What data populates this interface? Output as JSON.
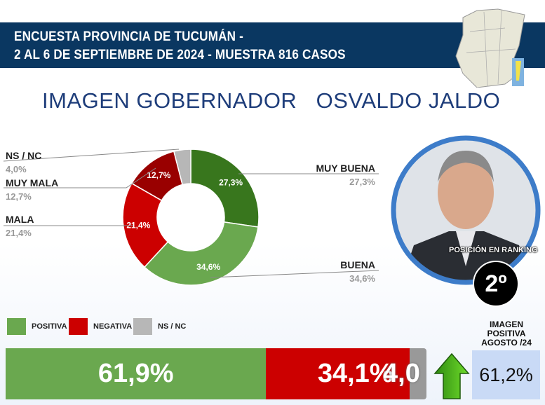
{
  "header": {
    "line1": "ENCUESTA PROVINCIA DE TUCUMÁN -",
    "line2": "2 AL 6 DE SEPTIEMBRE DE 2024 - MUESTRA 816 CASOS"
  },
  "title": "IMAGEN GOBERNADOR   OSVALDO JALDO",
  "chart_data": {
    "type": "pie",
    "title": "IMAGEN GOBERNADOR OSVALDO JALDO",
    "slices": [
      {
        "label": "MUY BUENA",
        "value": 27.3,
        "text": "27,3%",
        "color": "#38761d"
      },
      {
        "label": "BUENA",
        "value": 34.6,
        "text": "34,6%",
        "color": "#6aa84f"
      },
      {
        "label": "MALA",
        "value": 21.4,
        "text": "21,4%",
        "color": "#cc0000"
      },
      {
        "label": "MUY MALA",
        "value": 12.7,
        "text": "12,7%",
        "color": "#990000"
      },
      {
        "label": "NS / NC",
        "value": 4.0,
        "text": "4,0%",
        "color": "#b7b7b7"
      }
    ]
  },
  "legend": [
    {
      "label": "POSITIVA",
      "color": "#6aa84f"
    },
    {
      "label": "NEGATIVA",
      "color": "#cc0000"
    },
    {
      "label": "NS / NC",
      "color": "#b7b7b7"
    }
  ],
  "summary": [
    {
      "label": "POSITIVA",
      "value": 61.9,
      "text": "61,9%"
    },
    {
      "label": "NEGATIVA",
      "value": 34.1,
      "text": "34,1%"
    },
    {
      "label": "NS / NC",
      "value": 4.0,
      "text": "4,0"
    }
  ],
  "ranking": {
    "label": "POSICIÓN EN RANKING",
    "value": "2º"
  },
  "previous": {
    "label": "IMAGEN POSITIVA AGOSTO /24",
    "value": "61,2%"
  }
}
